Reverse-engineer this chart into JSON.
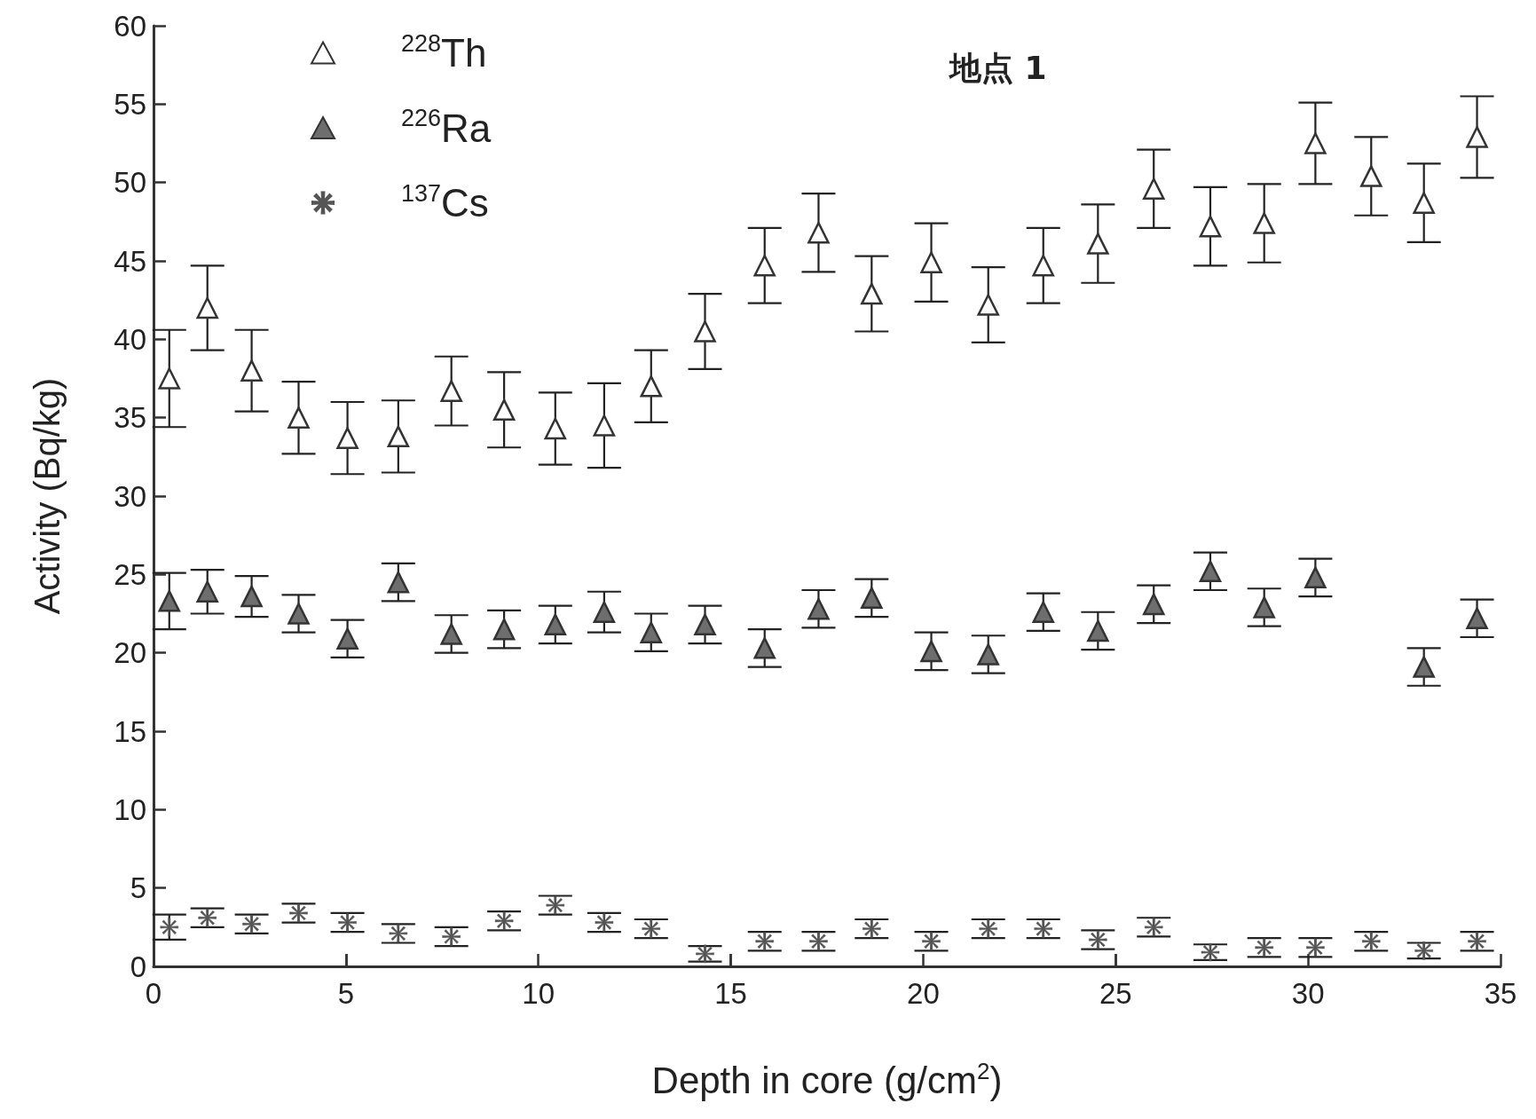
{
  "chart_data": {
    "type": "scatter",
    "xlabel": "Depth in core (g/cm$^{2}$)",
    "ylabel": "Activity (Bq/kg)",
    "annotations": [
      "地点 1"
    ],
    "x": [
      0.41,
      1.4,
      2.55,
      3.77,
      5.04,
      6.36,
      7.74,
      9.11,
      10.44,
      11.71,
      12.93,
      14.33,
      15.88,
      17.28,
      18.66,
      20.21,
      21.69,
      23.12,
      24.54,
      25.99,
      27.46,
      28.86,
      30.19,
      31.64,
      33.01,
      34.39
    ],
    "series": [
      {
        "name": "$^{228}$Th",
        "color": "#ffffff",
        "marker": "triangle",
        "values": [
          37.5,
          42,
          38,
          35,
          33.7,
          33.8,
          36.7,
          35.5,
          34.3,
          34.5,
          37,
          40.5,
          44.7,
          46.8,
          42.9,
          44.9,
          42.2,
          44.7,
          46.1,
          49.6,
          47.2,
          47.4,
          52.5,
          50.4,
          48.7,
          52.9
        ],
        "errors": [
          3.1,
          2.7,
          2.6,
          2.3,
          2.3,
          2.3,
          2.2,
          2.4,
          2.3,
          2.7,
          2.3,
          2.4,
          2.4,
          2.5,
          2.4,
          2.5,
          2.4,
          2.4,
          2.5,
          2.5,
          2.5,
          2.5,
          2.6,
          2.5,
          2.5,
          2.6
        ]
      },
      {
        "name": "$^{226}$Ra",
        "color": "#6e6e6e",
        "marker": "triangle",
        "values": [
          23.3,
          23.9,
          23.6,
          22.5,
          20.9,
          24.5,
          21.2,
          21.5,
          21.8,
          22.6,
          21.3,
          21.8,
          20.3,
          22.8,
          23.5,
          20.1,
          19.9,
          22.6,
          21.4,
          23.1,
          25.2,
          22.9,
          24.8,
          null,
          19.1,
          22.2
        ],
        "errors": [
          1.8,
          1.4,
          1.3,
          1.2,
          1.2,
          1.2,
          1.2,
          1.2,
          1.2,
          1.3,
          1.2,
          1.2,
          1.2,
          1.2,
          1.2,
          1.2,
          1.2,
          1.2,
          1.2,
          1.2,
          1.2,
          1.2,
          1.2,
          null,
          1.2,
          1.2
        ]
      },
      {
        "name": "$^{137}$Cs",
        "color": "#555555",
        "marker": "star",
        "values": [
          2.5,
          3.1,
          2.7,
          3.4,
          2.8,
          2.1,
          1.9,
          2.9,
          3.9,
          2.8,
          2.4,
          0.8,
          1.6,
          1.6,
          2.4,
          1.6,
          2.4,
          2.4,
          1.7,
          2.5,
          0.9,
          1.2,
          1.2,
          1.6,
          1.0,
          1.6
        ],
        "errors": [
          0.8,
          0.6,
          0.6,
          0.6,
          0.6,
          0.6,
          0.6,
          0.6,
          0.6,
          0.6,
          0.6,
          0.5,
          0.6,
          0.6,
          0.6,
          0.6,
          0.6,
          0.6,
          0.6,
          0.6,
          0.5,
          0.6,
          0.6,
          0.6,
          0.5,
          0.6
        ]
      }
    ],
    "xlim": [
      0,
      35
    ],
    "xticks": [
      0,
      5,
      10,
      15,
      20,
      25,
      30,
      35
    ],
    "ylim": [
      0,
      60
    ],
    "yticks": [
      0,
      5,
      10,
      15,
      20,
      25,
      30,
      35,
      40,
      45,
      50,
      55,
      60
    ],
    "legend": "top left",
    "grid": false
  }
}
